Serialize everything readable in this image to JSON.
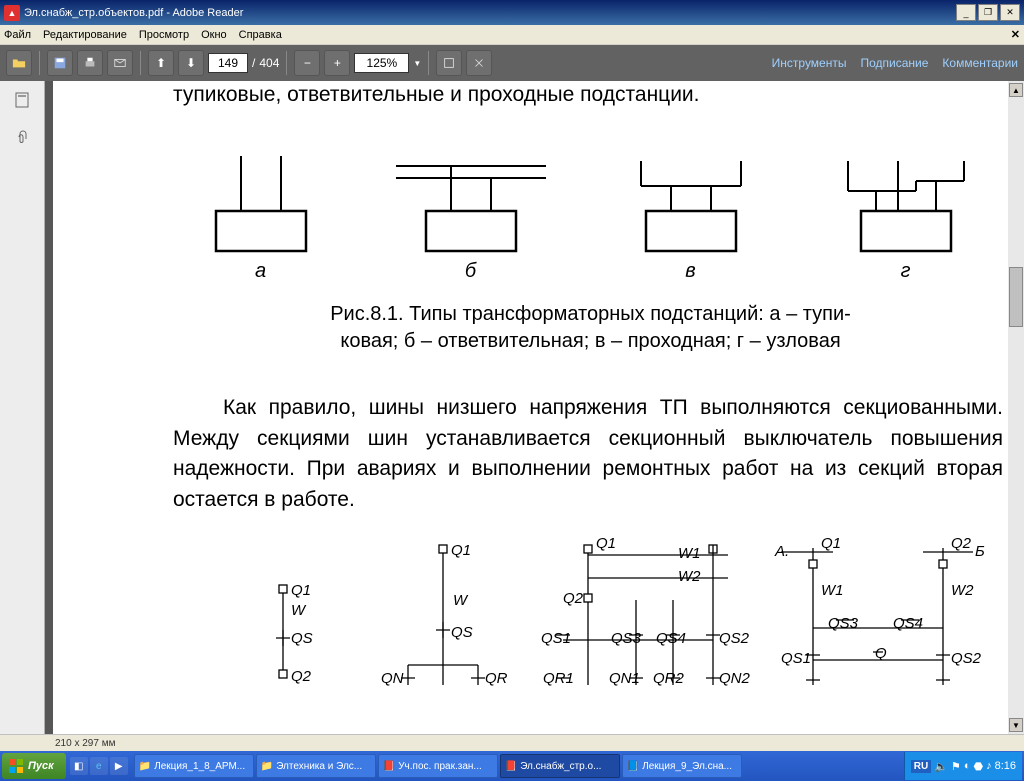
{
  "title": "Эл.снабж_стр.объектов.pdf - Adobe Reader",
  "menu": {
    "file": "Файл",
    "edit": "Редактирование",
    "view": "Просмотр",
    "window": "Окно",
    "help": "Справка"
  },
  "toolbar": {
    "page_current": "149",
    "page_sep": "/",
    "page_total": "404",
    "zoom": "125%",
    "tools": "Инструменты",
    "sign": "Подписание",
    "comments": "Комментарии"
  },
  "doc": {
    "para1": "тупиковые, ответвительные и проходные подстанции.",
    "labels": {
      "a": "а",
      "b": "б",
      "v": "в",
      "g": "г"
    },
    "caption_l1": "Рис.8.1. Типы трансформаторных подстанций: а – тупи-",
    "caption_l2": "ковая; б – ответвительная; в – проходная; г – узловая",
    "para2": "Как правило, шины низшего напряжения ТП выполняются секцио­ванными. Между секциями шин устанавливается секционный выключатель повышения надежности. При авариях и выполнении ремонтных работ на из секций вторая остается в работе.",
    "sch": {
      "Q1": "Q1",
      "Q2": "Q2",
      "W": "W",
      "W1": "W1",
      "W2": "W2",
      "QS": "QS",
      "QS1": "QS1",
      "QS2": "QS2",
      "QS3": "QS3",
      "QS4": "QS4",
      "QN": "QN",
      "QR": "QR",
      "QN1": "QN1",
      "QN2": "QN2",
      "QR1": "QR1",
      "QR2": "QR2",
      "Q": "Q",
      "A": "А.",
      "B": "Б"
    }
  },
  "status": "210 x 297 мм",
  "taskbar": {
    "start": "Пуск",
    "tasks": [
      {
        "label": "Лекция_1_8_АРМ...",
        "icon": "folder"
      },
      {
        "label": "Элтехника и Элс...",
        "icon": "folder"
      },
      {
        "label": "Уч.пос. прак.зан...",
        "icon": "pdf"
      },
      {
        "label": "Эл.снабж_стр.о...",
        "icon": "pdf",
        "active": true
      },
      {
        "label": "Лекция_9_Эл.сна...",
        "icon": "word"
      }
    ],
    "lang": "RU",
    "time": "8:16"
  },
  "colors": {
    "titlebar": "#0a246a",
    "toolbar": "#626262",
    "accent": "#9fd0ff",
    "taskbar": "#2355c0",
    "start": "#3e8524"
  }
}
